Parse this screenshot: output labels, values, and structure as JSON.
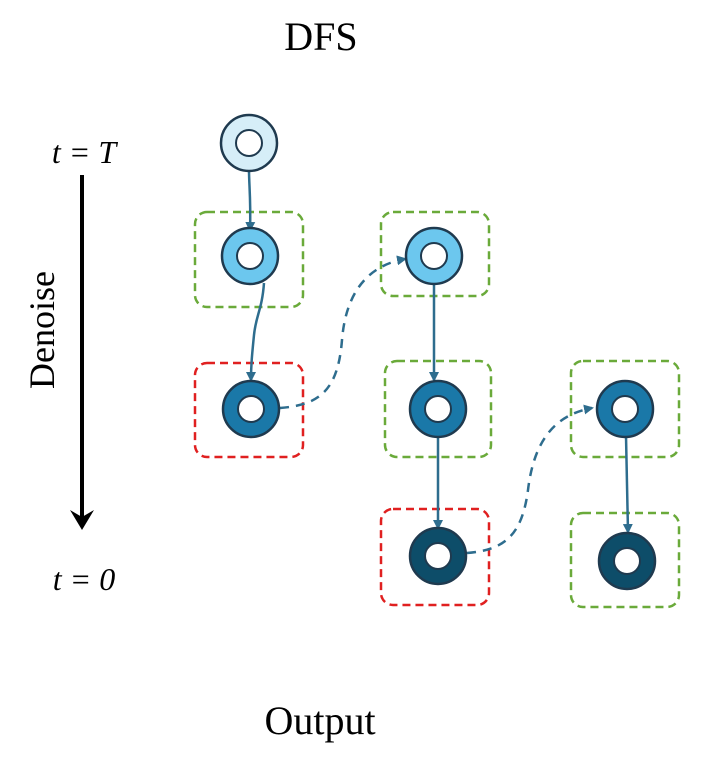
{
  "title": "DFS",
  "footer": "Output",
  "axis": {
    "top_label": "t = T",
    "bottom_label": "t = 0",
    "side_label": "Denoise"
  },
  "colors": {
    "level0": "#d6eef8",
    "level1": "#6cc7ee",
    "level2": "#1a78a8",
    "level3": "#0d4d69",
    "accepted_box": "#6aaa3a",
    "rejected_box": "#e02020",
    "edge": "#2e6d8e"
  }
}
